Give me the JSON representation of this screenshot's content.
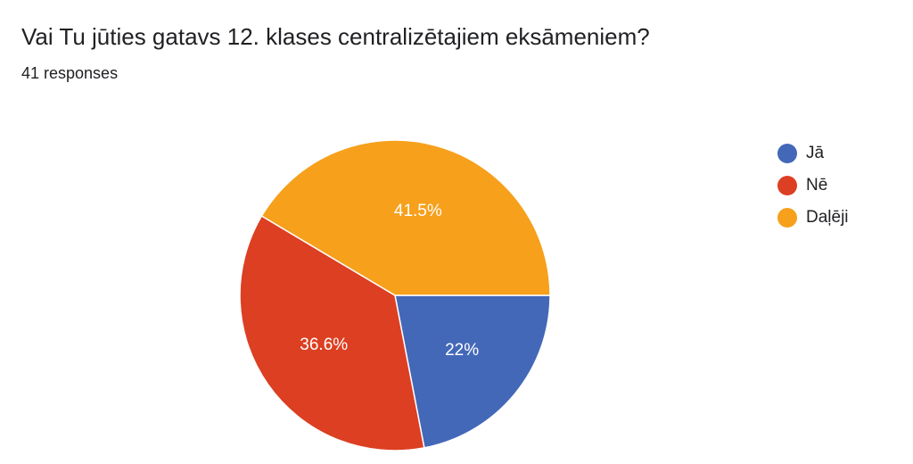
{
  "chart_data": {
    "type": "pie",
    "title": "Vai Tu jūties gatavs 12. klases centralizētajiem eksāmeniem?",
    "subtitle": "41 responses",
    "legend_position": "right",
    "slices": [
      {
        "name": "Jā",
        "value": 22,
        "label": "22%",
        "color": "#4468b8"
      },
      {
        "name": "Nē",
        "value": 36.6,
        "label": "36.6%",
        "color": "#dc3f22"
      },
      {
        "name": "Daļēji",
        "value": 41.5,
        "label": "41.5%",
        "color": "#f6a01c"
      }
    ]
  }
}
